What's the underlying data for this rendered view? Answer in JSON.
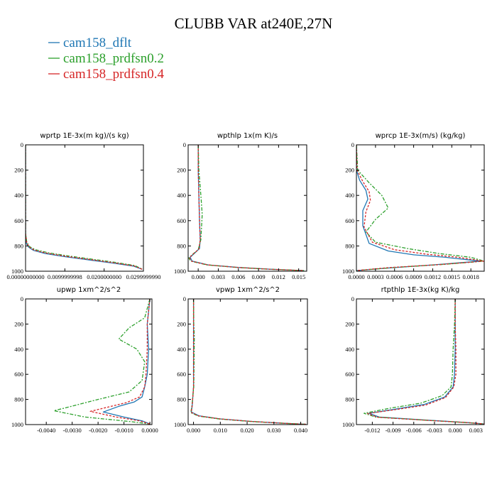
{
  "title": "CLUBB VAR at240E,27N",
  "legend": [
    {
      "label": "cam158_dflt",
      "color": "#1f77b4"
    },
    {
      "label": "cam158_prdfsn0.2",
      "color": "#2ca02c"
    },
    {
      "label": "cam158_prdfsn0.4",
      "color": "#d62728"
    }
  ],
  "chart_data": [
    {
      "type": "line",
      "title": "wprtp  1E-3x(m kg)/(s kg)",
      "xlim": [
        0,
        0.03
      ],
      "ylim": [
        1000,
        0
      ],
      "xticks": [
        0,
        0.01,
        0.02,
        0.03
      ],
      "xtick_labels": [
        "0.00000000000",
        "0.0099999998",
        "0.0200000000",
        "0.0299999990"
      ],
      "yticks": [
        0,
        200,
        400,
        600,
        800,
        1000
      ],
      "series": [
        {
          "color": "#1f77b4",
          "x": [
            0,
            0,
            0,
            0.0002,
            0.0008,
            0.002,
            0.005,
            0.01,
            0.016,
            0.022,
            0.0275,
            0.0297
          ],
          "y": [
            0,
            400,
            700,
            780,
            810,
            835,
            860,
            885,
            910,
            935,
            960,
            985
          ]
        },
        {
          "color": "#2ca02c",
          "x": [
            0,
            0,
            0,
            0.0003,
            0.001,
            0.0025,
            0.006,
            0.011,
            0.017,
            0.0228,
            0.0278,
            0.0298
          ],
          "y": [
            0,
            400,
            700,
            770,
            805,
            830,
            855,
            880,
            905,
            930,
            955,
            985
          ]
        },
        {
          "color": "#d62728",
          "x": [
            0,
            0,
            0,
            0.0003,
            0.0009,
            0.0022,
            0.0055,
            0.0105,
            0.0165,
            0.0225,
            0.0276,
            0.0297
          ],
          "y": [
            0,
            400,
            700,
            775,
            808,
            833,
            858,
            883,
            908,
            933,
            958,
            985
          ]
        }
      ]
    },
    {
      "type": "line",
      "title": "wpthlp  1x(m K)/s",
      "xlim": [
        -0.0015,
        0.0162
      ],
      "ylim": [
        1000,
        0
      ],
      "xticks": [
        0,
        0.003,
        0.006,
        0.009,
        0.012,
        0.015
      ],
      "xtick_labels": [
        "0.000",
        "0.003",
        "0.006",
        "0.009",
        "0.012",
        "0.015"
      ],
      "yticks": [
        0,
        200,
        400,
        600,
        800,
        1000
      ],
      "series": [
        {
          "color": "#1f77b4",
          "x": [
            0,
            0,
            0.0001,
            0.0002,
            0.0003,
            0.0002,
            -0.0006,
            -0.0012,
            -0.0009,
            0.0015,
            0.006,
            0.011,
            0.0158
          ],
          "y": [
            0,
            200,
            400,
            600,
            750,
            820,
            860,
            890,
            920,
            950,
            970,
            985,
            995
          ]
        },
        {
          "color": "#2ca02c",
          "x": [
            0,
            0.0001,
            0.0004,
            0.0006,
            0.0004,
            0,
            -0.0008,
            -0.0014,
            -0.0011,
            0.0013,
            0.0058,
            0.0108,
            0.0158
          ],
          "y": [
            0,
            200,
            400,
            550,
            750,
            830,
            865,
            895,
            920,
            950,
            970,
            985,
            995
          ]
        },
        {
          "color": "#d62728",
          "x": [
            0,
            0,
            0.0001,
            0.0002,
            0.0003,
            0.0001,
            -0.0007,
            -0.0013,
            -0.001,
            0.0014,
            0.0059,
            0.0109,
            0.0158
          ],
          "y": [
            0,
            200,
            400,
            600,
            750,
            825,
            862,
            892,
            920,
            950,
            970,
            985,
            995
          ]
        }
      ]
    },
    {
      "type": "line",
      "title": "wprcp  1E-3x(m/s) (kg/kg)",
      "xlim": [
        0,
        0.00201
      ],
      "ylim": [
        1000,
        0
      ],
      "xticks": [
        0,
        0.0003,
        0.0006,
        0.0009,
        0.0012,
        0.0015,
        0.0018
      ],
      "xtick_labels": [
        "0.0000",
        "0.0003",
        "0.0006",
        "0.0009",
        "0.0012",
        "0.0015",
        "0.0018"
      ],
      "yticks": [
        0,
        200,
        400,
        600,
        800,
        1000
      ],
      "series": [
        {
          "color": "#1f77b4",
          "x": [
            0,
            0.0,
            5e-05,
            0.00015,
            0.00018,
            0.0001,
            0.0001,
            0.0002,
            0.0005,
            0.0009,
            0.0014,
            0.00195,
            0.0012,
            0.0005,
            0
          ],
          "y": [
            0,
            200,
            280,
            360,
            430,
            520,
            640,
            780,
            840,
            870,
            890,
            920,
            950,
            975,
            995
          ]
        },
        {
          "color": "#2ca02c",
          "x": [
            0,
            2e-05,
            0.0002,
            0.0004,
            0.0005,
            0.0003,
            0.00015,
            0.0003,
            0.0008,
            0.0013,
            0.0018,
            0.00201,
            0.0014,
            0.0006,
            0
          ],
          "y": [
            0,
            200,
            300,
            400,
            500,
            590,
            690,
            770,
            820,
            860,
            890,
            920,
            945,
            970,
            995
          ]
        },
        {
          "color": "#d62728",
          "x": [
            0,
            1e-05,
            0.0001,
            0.0002,
            0.00022,
            0.00015,
            0.00012,
            0.00025,
            0.0006,
            0.0011,
            0.0016,
            0.002,
            0.0013,
            0.0005,
            0
          ],
          "y": [
            0,
            200,
            290,
            370,
            440,
            530,
            650,
            770,
            830,
            865,
            890,
            920,
            948,
            972,
            995
          ]
        }
      ]
    },
    {
      "type": "line",
      "title": "upwp  1xm^2/s^2",
      "xlim": [
        -0.0048,
        8e-05
      ],
      "ylim": [
        1000,
        0
      ],
      "xticks": [
        -0.004,
        -0.003,
        -0.002,
        -0.001,
        0
      ],
      "xtick_labels": [
        "-0.0040",
        "-0.0030",
        "-0.0020",
        "-0.0010",
        "0.0000"
      ],
      "yticks": [
        0,
        200,
        400,
        600,
        800,
        1000
      ],
      "series": [
        {
          "color": "#1f77b4",
          "x": [
            0,
            -0.0001,
            -5e-05,
            -0.0001,
            -0.0002,
            -0.0003,
            -0.0006,
            -0.0012,
            -0.0018,
            -0.001,
            -0.0003,
            0
          ],
          "y": [
            0,
            200,
            400,
            600,
            700,
            780,
            820,
            855,
            900,
            940,
            970,
            995
          ]
        },
        {
          "color": "#2ca02c",
          "x": [
            0,
            -0.0002,
            -0.0008,
            -0.0012,
            -0.0005,
            -0.0002,
            -0.0003,
            -0.0008,
            -0.002,
            -0.0037,
            -0.0025,
            -0.0008,
            0
          ],
          "y": [
            0,
            150,
            230,
            320,
            400,
            500,
            650,
            740,
            800,
            890,
            940,
            975,
            995
          ]
        },
        {
          "color": "#d62728",
          "x": [
            0,
            -0.0001,
            -0.0001,
            -0.00015,
            -0.0002,
            -0.0004,
            -0.0009,
            -0.0016,
            -0.0023,
            -0.0013,
            -0.0004,
            0
          ],
          "y": [
            0,
            200,
            400,
            600,
            700,
            780,
            825,
            860,
            895,
            940,
            970,
            995
          ]
        }
      ]
    },
    {
      "type": "line",
      "title": "vpwp  1xm^2/s^2",
      "xlim": [
        -0.002,
        0.0425
      ],
      "ylim": [
        1000,
        0
      ],
      "xticks": [
        0,
        0.01,
        0.02,
        0.03,
        0.04
      ],
      "xtick_labels": [
        "0.000",
        "0.010",
        "0.020",
        "0.030",
        "0.040"
      ],
      "yticks": [
        0,
        200,
        400,
        600,
        800,
        1000
      ],
      "series": [
        {
          "color": "#1f77b4",
          "x": [
            0,
            0,
            0,
            0,
            -0.0005,
            -0.0008,
            0.002,
            0.01,
            0.022,
            0.034,
            0.042
          ],
          "y": [
            0,
            200,
            400,
            700,
            850,
            900,
            930,
            955,
            975,
            990,
            998
          ]
        },
        {
          "color": "#2ca02c",
          "x": [
            0,
            0.0001,
            0.0003,
            0.0001,
            -0.0006,
            -0.001,
            0.0018,
            0.0098,
            0.0218,
            0.0338,
            0.042
          ],
          "y": [
            0,
            200,
            300,
            700,
            850,
            905,
            932,
            956,
            976,
            990,
            998
          ]
        },
        {
          "color": "#d62728",
          "x": [
            0,
            0,
            0,
            0,
            -0.0005,
            -0.0009,
            0.0019,
            0.0099,
            0.0219,
            0.0339,
            0.042
          ],
          "y": [
            0,
            200,
            400,
            700,
            850,
            902,
            931,
            955,
            975,
            990,
            998
          ]
        }
      ]
    },
    {
      "type": "line",
      "title": "rtpthlp  1E-3x(kg K)/kg",
      "xlim": [
        -0.0143,
        0.0042
      ],
      "ylim": [
        1000,
        0
      ],
      "xticks": [
        -0.012,
        -0.009,
        -0.006,
        -0.003,
        0,
        0.003
      ],
      "xtick_labels": [
        "-0.012",
        "-0.009",
        "-0.006",
        "-0.003",
        "0.000",
        "0.003"
      ],
      "yticks": [
        0,
        200,
        400,
        600,
        800,
        1000
      ],
      "series": [
        {
          "color": "#1f77b4",
          "x": [
            0,
            0,
            0,
            -0.0001,
            -0.0003,
            -0.0015,
            -0.0045,
            -0.009,
            -0.0125,
            -0.011,
            -0.004,
            0.002,
            0.0042
          ],
          "y": [
            0,
            200,
            400,
            600,
            700,
            780,
            840,
            880,
            910,
            940,
            965,
            985,
            995
          ]
        },
        {
          "color": "#2ca02c",
          "x": [
            0,
            -0.0001,
            -0.0003,
            -0.0004,
            -0.0006,
            -0.0019,
            -0.005,
            -0.0095,
            -0.0132,
            -0.0115,
            -0.0043,
            0.0018,
            0.0042
          ],
          "y": [
            0,
            200,
            400,
            600,
            700,
            770,
            830,
            870,
            910,
            940,
            965,
            985,
            995
          ]
        },
        {
          "color": "#d62728",
          "x": [
            0,
            0,
            0.0001,
            0.0001,
            -0.0002,
            -0.0014,
            -0.0043,
            -0.0088,
            -0.0127,
            -0.0112,
            -0.0041,
            0.0019,
            0.0042
          ],
          "y": [
            0,
            200,
            400,
            600,
            700,
            785,
            845,
            882,
            912,
            942,
            966,
            985,
            995
          ]
        }
      ]
    }
  ]
}
